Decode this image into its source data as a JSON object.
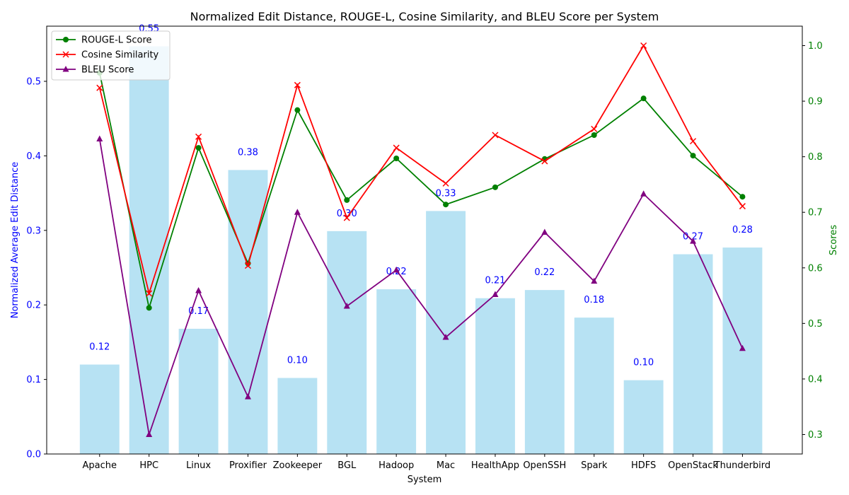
{
  "chart_data": {
    "type": "bar+line",
    "title": "Normalized Edit Distance, ROUGE-L, Cosine Similarity, and BLEU Score per System",
    "xlabel": "System",
    "ylabel_left": "Normalized Average Edit Distance",
    "ylabel_right": "Scores",
    "categories": [
      "Apache",
      "HPC",
      "Linux",
      "Proxifier",
      "Zookeeper",
      "BGL",
      "Hadoop",
      "Mac",
      "HealthApp",
      "OpenSSH",
      "Spark",
      "HDFS",
      "OpenStack",
      "Thunderbird"
    ],
    "bars": {
      "name": "Normalized Average Edit Distance",
      "values": [
        0.12,
        0.547,
        0.168,
        0.381,
        0.102,
        0.299,
        0.221,
        0.326,
        0.209,
        0.22,
        0.183,
        0.099,
        0.268,
        0.277
      ],
      "labels": [
        "0.12",
        "0.55",
        "0.17",
        "0.38",
        "0.10",
        "0.30",
        "0.22",
        "0.33",
        "0.21",
        "0.22",
        "0.18",
        "0.10",
        "0.27",
        "0.28"
      ],
      "color": "#87CEEB"
    },
    "ylim_left": [
      0,
      0.574
    ],
    "yticks_left": [
      "0.0",
      "0.1",
      "0.2",
      "0.3",
      "0.4",
      "0.5"
    ],
    "yticks_left_values": [
      0,
      0.1,
      0.2,
      0.3,
      0.4,
      0.5
    ],
    "ylim_right": [
      0.265,
      1.035
    ],
    "yticks_right": [
      "0.3",
      "0.4",
      "0.5",
      "0.6",
      "0.7",
      "0.8",
      "0.9",
      "1.0"
    ],
    "yticks_right_values": [
      0.3,
      0.4,
      0.5,
      0.6,
      0.7,
      0.8,
      0.9,
      1.0
    ],
    "series": [
      {
        "name": "ROUGE-L Score",
        "marker": "circle",
        "color": "#008000",
        "values": [
          0.951,
          0.528,
          0.816,
          0.608,
          0.884,
          0.722,
          0.797,
          0.714,
          0.745,
          0.796,
          0.839,
          0.905,
          0.802,
          0.728
        ]
      },
      {
        "name": "Cosine Similarity",
        "marker": "x",
        "color": "#ff0000",
        "values": [
          0.924,
          0.554,
          0.836,
          0.604,
          0.929,
          0.69,
          0.816,
          0.752,
          0.839,
          0.792,
          0.85,
          1.0,
          0.828,
          0.711
        ]
      },
      {
        "name": "BLEU Score",
        "marker": "triangle",
        "color": "#800080",
        "values": [
          0.832,
          0.3,
          0.559,
          0.368,
          0.7,
          0.531,
          0.596,
          0.475,
          0.552,
          0.664,
          0.576,
          0.733,
          0.648,
          0.455
        ]
      }
    ],
    "legend_position": "top-left",
    "left_axis_color": "#0000ff",
    "right_axis_color": "#008000",
    "grid": false
  }
}
